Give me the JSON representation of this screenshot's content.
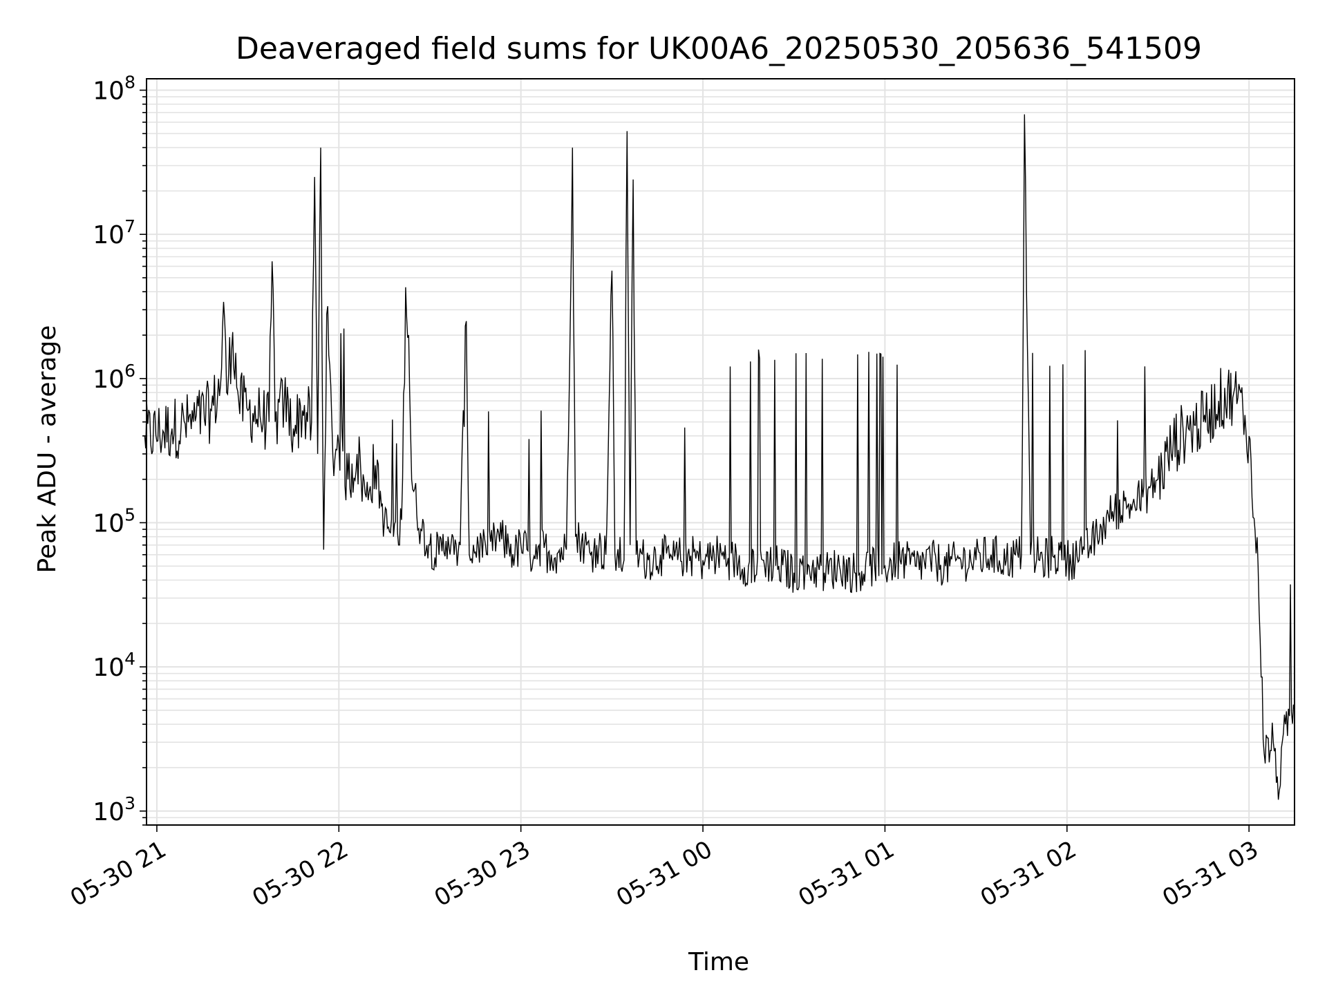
{
  "chart_data": {
    "type": "line",
    "title": "Deaveraged field sums for UK00A6_20250530_205636_541509",
    "xlabel": "Time",
    "ylabel": "Peak ADU - average",
    "yscale": "log",
    "ylim": [
      800,
      120000000
    ],
    "xlim": [
      "05-30 20:56:36",
      "05-31 03:15:00"
    ],
    "grid": true,
    "grid_minor": true,
    "line_color": "#000000",
    "x_ticks": [
      "05-30 21",
      "05-30 22",
      "05-30 23",
      "05-31 00",
      "05-31 01",
      "05-31 02",
      "05-31 03"
    ],
    "y_ticks": [
      {
        "value": 1000,
        "base": "10",
        "exp": "3"
      },
      {
        "value": 10000,
        "base": "10",
        "exp": "4"
      },
      {
        "value": 100000,
        "base": "10",
        "exp": "5"
      },
      {
        "value": 1000000,
        "base": "10",
        "exp": "6"
      },
      {
        "value": 10000000,
        "base": "10",
        "exp": "7"
      },
      {
        "value": 100000000,
        "base": "10",
        "exp": "8"
      }
    ],
    "series": [
      {
        "values_are": "approximate envelope of a dense trace; timestamp then Peak ADU - average",
        "points": [
          [
            "05-30 20:56",
            400000
          ],
          [
            "05-30 21:05",
            450000
          ],
          [
            "05-30 21:12",
            500000
          ],
          [
            "05-30 21:18",
            600000
          ],
          [
            "05-30 21:21",
            900000
          ],
          [
            "05-30 21:22",
            3400000
          ],
          [
            "05-30 21:23",
            800000
          ],
          [
            "05-30 21:25",
            2100000
          ],
          [
            "05-30 21:27",
            700000
          ],
          [
            "05-30 21:30",
            600000
          ],
          [
            "05-30 21:34",
            550000
          ],
          [
            "05-30 21:37",
            500000
          ],
          [
            "05-30 21:38",
            6500000
          ],
          [
            "05-30 21:39",
            500000
          ],
          [
            "05-30 21:42",
            700000
          ],
          [
            "05-30 21:45",
            450000
          ],
          [
            "05-30 21:48",
            600000
          ],
          [
            "05-30 21:51",
            500000
          ],
          [
            "05-30 21:52",
            25000000
          ],
          [
            "05-30 21:53",
            300000
          ],
          [
            "05-30 21:54",
            40000000
          ],
          [
            "05-30 21:55",
            65000
          ],
          [
            "05-30 21:56",
            2800000
          ],
          [
            "05-30 21:58",
            300000
          ],
          [
            "05-30 22:00",
            350000
          ],
          [
            "05-30 22:03",
            200000
          ],
          [
            "05-30 22:06",
            300000
          ],
          [
            "05-30 22:09",
            150000
          ],
          [
            "05-30 22:12",
            250000
          ],
          [
            "05-30 22:15",
            100000
          ],
          [
            "05-30 22:18",
            80000
          ],
          [
            "05-30 22:20",
            70000
          ],
          [
            "05-30 22:21",
            200000
          ],
          [
            "05-30 22:22",
            4300000
          ],
          [
            "05-30 22:23",
            2000000
          ],
          [
            "05-30 22:24",
            200000
          ],
          [
            "05-30 22:27",
            90000
          ],
          [
            "05-30 22:30",
            70000
          ],
          [
            "05-30 22:33",
            60000
          ],
          [
            "05-30 22:36",
            80000
          ],
          [
            "05-30 22:38",
            60000
          ],
          [
            "05-30 22:40",
            70000
          ],
          [
            "05-30 22:42",
            2500000
          ],
          [
            "05-30 22:43",
            60000
          ],
          [
            "05-30 22:46",
            70000
          ],
          [
            "05-30 22:49",
            60000
          ],
          [
            "05-30 22:52",
            80000
          ],
          [
            "05-30 22:56",
            70000
          ],
          [
            "05-30 22:58",
            60000
          ],
          [
            "05-30 23:00",
            70000
          ],
          [
            "05-30 23:03",
            60000
          ],
          [
            "05-30 23:06",
            70000
          ],
          [
            "05-30 23:10",
            60000
          ],
          [
            "05-30 23:15",
            65000
          ],
          [
            "05-30 23:17",
            40000000
          ],
          [
            "05-30 23:18",
            80000
          ],
          [
            "05-30 23:21",
            70000
          ],
          [
            "05-30 23:23",
            60000
          ],
          [
            "05-30 23:25",
            70000
          ],
          [
            "05-30 23:28",
            60000
          ],
          [
            "05-30 23:30",
            5600000
          ],
          [
            "05-30 23:31",
            60000
          ],
          [
            "05-30 23:34",
            55000
          ],
          [
            "05-30 23:35",
            52000000
          ],
          [
            "05-30 23:36",
            70000
          ],
          [
            "05-30 23:37",
            24000000
          ],
          [
            "05-30 23:38",
            60000
          ],
          [
            "05-30 23:42",
            55000
          ],
          [
            "05-30 23:46",
            60000
          ],
          [
            "05-30 23:50",
            55000
          ],
          [
            "05-30 23:55",
            60000
          ],
          [
            "05-31 00:00",
            55000
          ],
          [
            "05-31 00:05",
            60000
          ],
          [
            "05-31 00:10",
            55000
          ],
          [
            "05-31 00:15",
            50000
          ],
          [
            "05-31 00:20",
            55000
          ],
          [
            "05-31 00:25",
            50000
          ],
          [
            "05-31 00:30",
            45000
          ],
          [
            "05-31 00:35",
            50000
          ],
          [
            "05-31 00:40",
            45000
          ],
          [
            "05-31 00:45",
            50000
          ],
          [
            "05-31 00:50",
            45000
          ],
          [
            "05-31 00:55",
            50000
          ],
          [
            "05-31 01:00",
            50000
          ],
          [
            "05-31 01:05",
            55000
          ],
          [
            "05-31 01:10",
            50000
          ],
          [
            "05-31 01:15",
            55000
          ],
          [
            "05-31 01:20",
            50000
          ],
          [
            "05-31 01:25",
            55000
          ],
          [
            "05-31 01:30",
            55000
          ],
          [
            "05-31 01:35",
            60000
          ],
          [
            "05-31 01:40",
            55000
          ],
          [
            "05-31 01:45",
            60000
          ],
          [
            "05-31 01:46",
            68000000
          ],
          [
            "05-31 01:47",
            1500000
          ],
          [
            "05-31 01:48",
            60000
          ],
          [
            "05-31 01:52",
            55000
          ],
          [
            "05-31 01:56",
            60000
          ],
          [
            "05-31 02:00",
            55000
          ],
          [
            "05-31 02:05",
            60000
          ],
          [
            "05-31 02:10",
            80000
          ],
          [
            "05-31 02:15",
            120000
          ],
          [
            "05-31 02:20",
            130000
          ],
          [
            "05-31 02:25",
            150000
          ],
          [
            "05-31 02:30",
            200000
          ],
          [
            "05-31 02:35",
            350000
          ],
          [
            "05-31 02:40",
            450000
          ],
          [
            "05-31 02:45",
            500000
          ],
          [
            "05-31 02:50",
            700000
          ],
          [
            "05-31 02:55",
            800000
          ],
          [
            "05-31 02:58",
            600000
          ],
          [
            "05-31 03:00",
            400000
          ],
          [
            "05-31 03:01",
            150000
          ],
          [
            "05-31 03:03",
            50000
          ],
          [
            "05-31 03:05",
            2500
          ],
          [
            "05-31 03:08",
            3000
          ],
          [
            "05-31 03:10",
            1400
          ],
          [
            "05-31 03:12",
            4000
          ],
          [
            "05-31 03:15",
            5000
          ]
        ]
      }
    ]
  }
}
